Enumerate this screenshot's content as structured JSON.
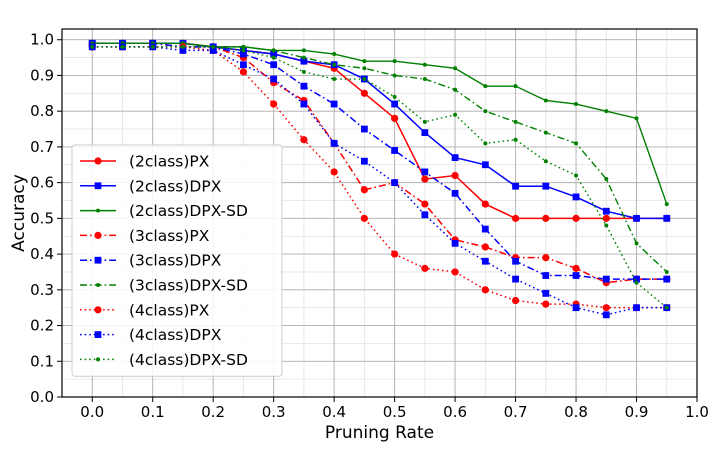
{
  "chart_data": {
    "type": "line",
    "xlabel": "Pruning Rate",
    "ylabel": "Accuracy",
    "xlim": [
      -0.05,
      1.0
    ],
    "ylim": [
      0.0,
      1.03
    ],
    "xticks": [
      "0.0",
      "0.1",
      "0.2",
      "0.3",
      "0.4",
      "0.5",
      "0.6",
      "0.7",
      "0.8",
      "0.9",
      "1.0"
    ],
    "yticks": [
      "0.0",
      "0.1",
      "0.2",
      "0.3",
      "0.4",
      "0.5",
      "0.6",
      "0.7",
      "0.8",
      "0.9",
      "1.0"
    ],
    "grid": true,
    "legend_position": "left",
    "x": [
      0.0,
      0.05,
      0.1,
      0.15,
      0.2,
      0.25,
      0.3,
      0.35,
      0.4,
      0.45,
      0.5,
      0.55,
      0.6,
      0.65,
      0.7,
      0.75,
      0.8,
      0.85,
      0.9,
      0.95
    ],
    "series": [
      {
        "name": "(2class)PX",
        "color": "#ff0000",
        "dash": "solid",
        "marker": "circle",
        "values": [
          0.99,
          0.99,
          0.99,
          0.99,
          0.98,
          0.97,
          0.96,
          0.94,
          0.92,
          0.85,
          0.78,
          0.61,
          0.62,
          0.54,
          0.5,
          0.5,
          0.5,
          0.5,
          0.5,
          0.5
        ]
      },
      {
        "name": "(2class)DPX",
        "color": "#0000ff",
        "dash": "solid",
        "marker": "square",
        "values": [
          0.99,
          0.99,
          0.99,
          0.99,
          0.98,
          0.97,
          0.96,
          0.94,
          0.93,
          0.89,
          0.82,
          0.74,
          0.67,
          0.65,
          0.59,
          0.59,
          0.56,
          0.52,
          0.5,
          0.5
        ]
      },
      {
        "name": "(2class)DPX-SD",
        "color": "#008000",
        "dash": "solid",
        "marker": "dot",
        "values": [
          0.99,
          0.99,
          0.99,
          0.99,
          0.98,
          0.98,
          0.97,
          0.97,
          0.96,
          0.94,
          0.94,
          0.93,
          0.92,
          0.87,
          0.87,
          0.83,
          0.82,
          0.8,
          0.78,
          0.54
        ]
      },
      {
        "name": "(3class)PX",
        "color": "#ff0000",
        "dash": "dashdot",
        "marker": "circle",
        "values": [
          0.99,
          0.99,
          0.99,
          0.98,
          0.98,
          0.95,
          0.88,
          0.83,
          0.71,
          0.58,
          0.6,
          0.54,
          0.44,
          0.42,
          0.39,
          0.39,
          0.36,
          0.32,
          0.33,
          0.33
        ]
      },
      {
        "name": "(3class)DPX",
        "color": "#0000ff",
        "dash": "dashdot",
        "marker": "square",
        "values": [
          0.99,
          0.99,
          0.99,
          0.98,
          0.98,
          0.96,
          0.93,
          0.87,
          0.82,
          0.75,
          0.69,
          0.63,
          0.57,
          0.47,
          0.38,
          0.34,
          0.34,
          0.33,
          0.33,
          0.33
        ]
      },
      {
        "name": "(3class)DPX-SD",
        "color": "#008000",
        "dash": "dashdot",
        "marker": "dot",
        "values": [
          0.99,
          0.99,
          0.99,
          0.99,
          0.98,
          0.98,
          0.97,
          0.95,
          0.93,
          0.92,
          0.9,
          0.89,
          0.86,
          0.8,
          0.77,
          0.74,
          0.71,
          0.61,
          0.43,
          0.35
        ]
      },
      {
        "name": "(4class)PX",
        "color": "#ff0000",
        "dash": "dotted",
        "marker": "circle",
        "values": [
          0.98,
          0.98,
          0.98,
          0.98,
          0.97,
          0.91,
          0.82,
          0.72,
          0.63,
          0.5,
          0.4,
          0.36,
          0.35,
          0.3,
          0.27,
          0.26,
          0.26,
          0.25,
          0.25,
          0.25
        ]
      },
      {
        "name": "(4class)DPX",
        "color": "#0000ff",
        "dash": "dotted",
        "marker": "square",
        "values": [
          0.98,
          0.98,
          0.98,
          0.97,
          0.97,
          0.93,
          0.89,
          0.82,
          0.71,
          0.66,
          0.6,
          0.51,
          0.43,
          0.38,
          0.33,
          0.29,
          0.25,
          0.23,
          0.25,
          0.25
        ]
      },
      {
        "name": "(4class)DPX-SD",
        "color": "#008000",
        "dash": "dotted",
        "marker": "dot",
        "values": [
          0.98,
          0.98,
          0.98,
          0.98,
          0.98,
          0.97,
          0.95,
          0.91,
          0.89,
          0.89,
          0.84,
          0.77,
          0.79,
          0.71,
          0.72,
          0.66,
          0.62,
          0.48,
          0.32,
          0.25
        ]
      }
    ]
  }
}
